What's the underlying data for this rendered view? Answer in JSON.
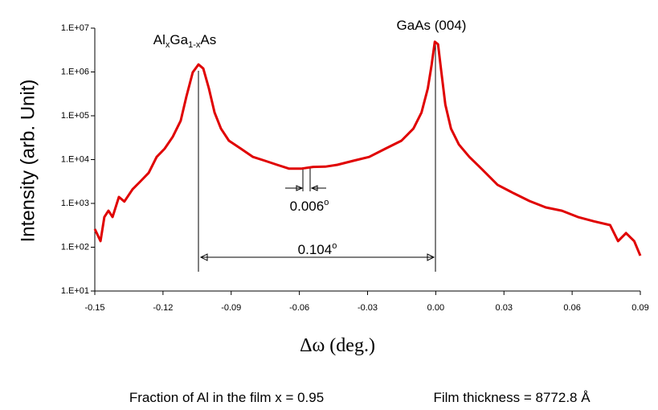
{
  "chart_data": {
    "type": "line",
    "ylabel": "Intensity (arb. Unit)",
    "xlabel": "Δω (deg.)",
    "log_y": true,
    "color": "#e00000",
    "xlim": [
      -0.15,
      0.09
    ],
    "xticks": [
      -0.15,
      -0.12,
      -0.09,
      -0.06,
      -0.03,
      {
        "value": 0,
        "label": "0.00"
      },
      0.03,
      0.06,
      0.09
    ],
    "ylim": [
      10,
      10000000
    ],
    "yticks": [
      {
        "value": 10,
        "label": "1.E+01"
      },
      {
        "value": 100,
        "label": "1.E+02"
      },
      {
        "value": 1000,
        "label": "1.E+03"
      },
      {
        "value": 10000,
        "label": "1.E+04"
      },
      {
        "value": 100000,
        "label": "1.E+05"
      },
      {
        "value": 1000000,
        "label": "1.E+06"
      },
      {
        "value": 10000000,
        "label": "1.E+07"
      }
    ],
    "x": [
      -0.15,
      -0.1475,
      -0.1458,
      -0.144,
      -0.1422,
      -0.1394,
      -0.137,
      -0.1334,
      -0.1299,
      -0.1263,
      -0.1228,
      -0.1193,
      -0.1157,
      -0.1122,
      -0.1097,
      -0.1069,
      -0.1044,
      -0.1023,
      -0.0998,
      -0.0973,
      -0.0945,
      -0.091,
      -0.0857,
      -0.0804,
      -0.0751,
      -0.0698,
      -0.0645,
      -0.0592,
      -0.0539,
      -0.0486,
      -0.0433,
      -0.0363,
      -0.0293,
      -0.0222,
      -0.0151,
      -0.0098,
      -0.0063,
      -0.0035,
      -0.0018,
      -0.0004,
      0.001,
      0.0025,
      0.0042,
      0.0067,
      0.0102,
      0.0148,
      0.0201,
      0.0272,
      0.0343,
      0.0413,
      0.0484,
      0.0555,
      0.0625,
      0.0696,
      0.0767,
      0.0802,
      0.0837,
      0.0873,
      0.09
    ],
    "values": [
      260,
      138,
      490,
      680,
      490,
      1400,
      1100,
      2100,
      3200,
      5000,
      11500,
      17700,
      33000,
      77000,
      275000,
      980000,
      1480000,
      1200000,
      420000,
      118000,
      51000,
      27000,
      17700,
      11500,
      9400,
      7600,
      6200,
      6200,
      6800,
      6900,
      7600,
      9400,
      11500,
      17700,
      27000,
      51000,
      118000,
      420000,
      1480000,
      4900000,
      4300000,
      980000,
      180000,
      51000,
      22000,
      11500,
      6200,
      2650,
      1700,
      1130,
      810,
      680,
      490,
      390,
      320,
      138,
      210,
      138,
      64
    ],
    "annotations": {
      "peak_left": [
        "Al",
        "x",
        "Ga",
        "1-x",
        "As"
      ],
      "peak_right": "GaAs (004)",
      "separation": [
        "0.104",
        "o"
      ],
      "fringe": [
        "0.006",
        "o"
      ]
    }
  },
  "footer": [
    "Fraction of Al in the film x = 0.95",
    "Film thickness = 8772.8 Å"
  ]
}
